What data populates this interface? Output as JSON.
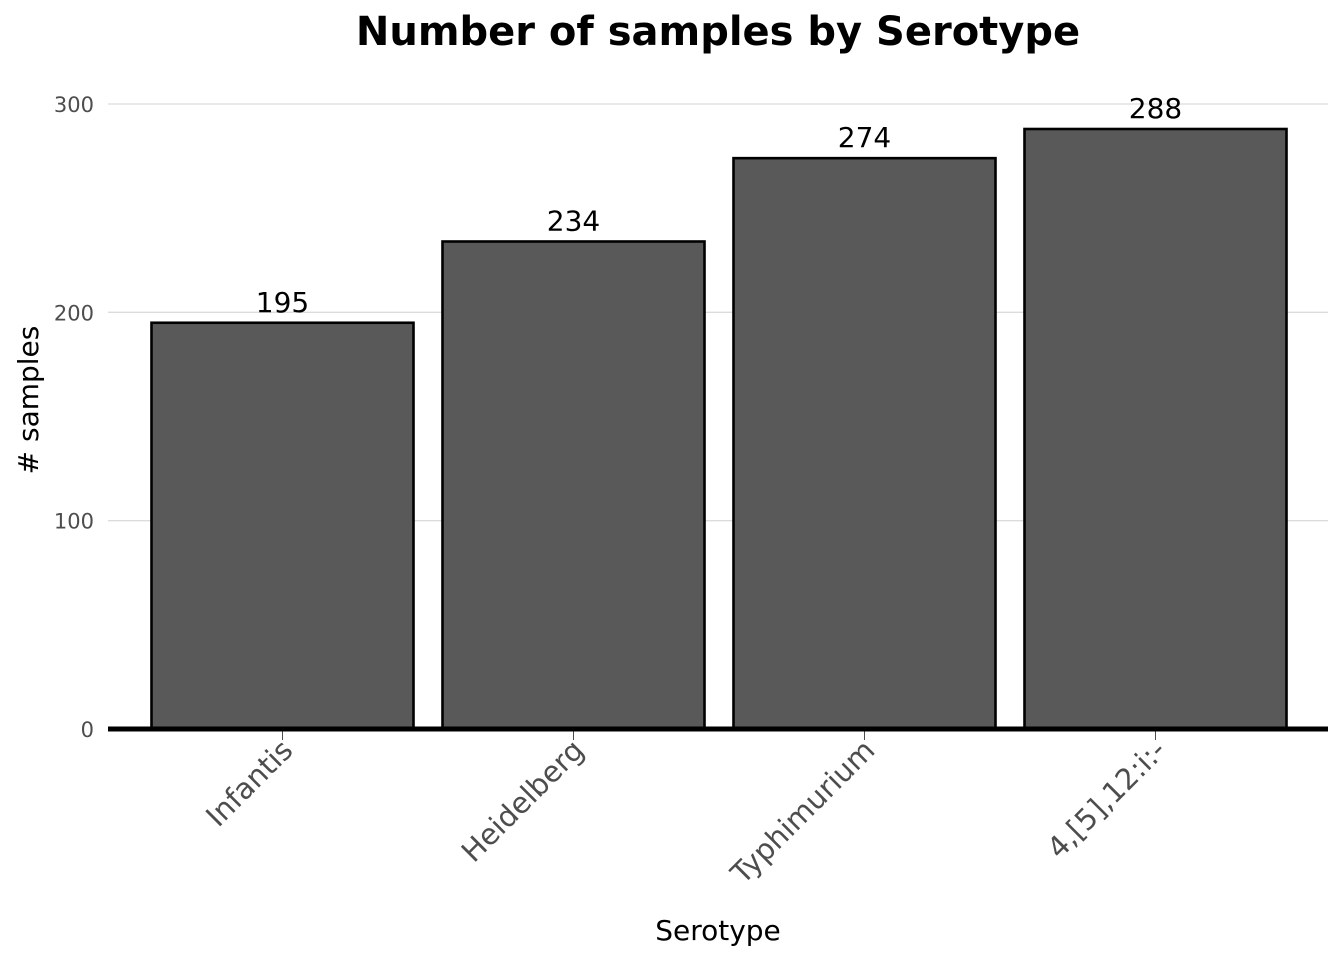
{
  "chart_data": {
    "type": "bar",
    "title": "Number of samples by Serotype",
    "xlabel": "Serotype",
    "ylabel": "# samples",
    "categories": [
      "Infantis",
      "Heidelberg",
      "Typhimurium",
      "4,[5],12:i:-"
    ],
    "values": [
      195,
      234,
      274,
      288
    ],
    "data_labels": [
      "195",
      "234",
      "274",
      "288"
    ],
    "yticks": [
      0,
      100,
      200,
      300
    ],
    "ytick_labels": [
      "0",
      "100",
      "200",
      "300"
    ],
    "ylim": [
      0,
      300
    ],
    "grid": "horizontal",
    "legend": "none",
    "colors": {
      "bar_fill": "#595959",
      "bar_stroke": "#000000",
      "grid": "#dcdcdc",
      "tick_text": "#4d4d4d"
    }
  }
}
